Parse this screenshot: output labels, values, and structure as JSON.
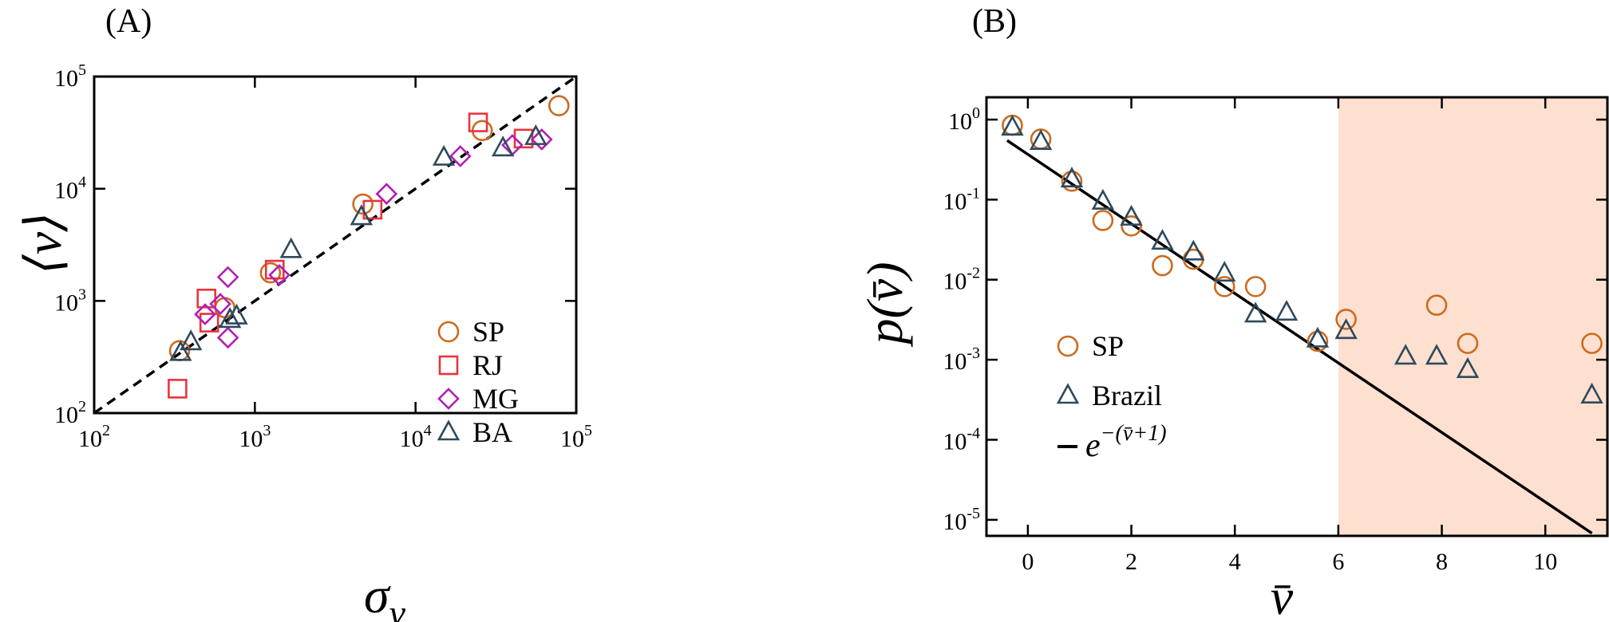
{
  "chart_data": [
    {
      "type": "scatter",
      "panel_label": "(A)",
      "xlabel": "σ",
      "xlabel_sub": "v",
      "ylabel": "⟨v⟩",
      "xscale": "log",
      "yscale": "log",
      "xlim": [
        100,
        100000
      ],
      "ylim": [
        100,
        100000
      ],
      "x_ticks": [
        {
          "value": 100,
          "base": "10",
          "exp": "2"
        },
        {
          "value": 1000,
          "base": "10",
          "exp": "3"
        },
        {
          "value": 10000,
          "base": "10",
          "exp": "4"
        },
        {
          "value": 100000,
          "base": "10",
          "exp": "5"
        }
      ],
      "y_ticks": [
        {
          "value": 100,
          "base": "10",
          "exp": "2"
        },
        {
          "value": 1000,
          "base": "10",
          "exp": "3"
        },
        {
          "value": 10000,
          "base": "10",
          "exp": "4"
        },
        {
          "value": 100000,
          "base": "10",
          "exp": "5"
        }
      ],
      "grid": false,
      "legend_position": "lower-right",
      "fit_line": {
        "style": "dashed",
        "color": "#000000",
        "x": [
          100,
          100000
        ],
        "y": [
          100,
          100000
        ]
      },
      "series": [
        {
          "name": "SP",
          "marker": "circle",
          "color": "#cc6a1e",
          "points": [
            [
              340,
              360
            ],
            [
              650,
              870
            ],
            [
              1250,
              1780
            ],
            [
              4700,
              7300
            ],
            [
              26000,
              33000
            ],
            [
              78000,
              55000
            ]
          ]
        },
        {
          "name": "RJ",
          "marker": "square",
          "color": "#e8343f",
          "points": [
            [
              330,
              165
            ],
            [
              500,
              1050
            ],
            [
              520,
              640
            ],
            [
              1330,
              1900
            ],
            [
              5400,
              6500
            ],
            [
              24500,
              39000
            ],
            [
              47000,
              28000
            ]
          ]
        },
        {
          "name": "MG",
          "marker": "diamond",
          "color": "#b020b4",
          "points": [
            [
              490,
              760
            ],
            [
              610,
              940
            ],
            [
              680,
              1630
            ],
            [
              680,
              470
            ],
            [
              1420,
              1700
            ],
            [
              6600,
              9000
            ],
            [
              19000,
              19500
            ],
            [
              40000,
              24500
            ],
            [
              61000,
              27500
            ]
          ]
        },
        {
          "name": "BA",
          "marker": "triangle",
          "color": "#2e4a5c",
          "points": [
            [
              345,
              345
            ],
            [
              400,
              430
            ],
            [
              700,
              680
            ],
            [
              770,
              730
            ],
            [
              1680,
              2850
            ],
            [
              4600,
              5600
            ],
            [
              15000,
              19000
            ],
            [
              35000,
              23000
            ],
            [
              56000,
              29000
            ]
          ]
        }
      ]
    },
    {
      "type": "scatter",
      "panel_label": "(B)",
      "xlabel": "v̄",
      "ylabel": "p(v̄)",
      "yscale": "log",
      "xlim": [
        -0.8,
        11.2
      ],
      "ylim": [
        6.3e-06,
        1.9
      ],
      "x_ticks": [
        0,
        2,
        4,
        6,
        8,
        10
      ],
      "y_ticks": [
        {
          "value": 1,
          "base": "10",
          "exp": "0"
        },
        {
          "value": 0.1,
          "base": "10",
          "exp": "-1"
        },
        {
          "value": 0.01,
          "base": "10",
          "exp": "-2"
        },
        {
          "value": 0.001,
          "base": "10",
          "exp": "-3"
        },
        {
          "value": 0.0001,
          "base": "10",
          "exp": "-4"
        },
        {
          "value": 1e-05,
          "base": "10",
          "exp": "-5"
        }
      ],
      "grid": false,
      "legend_position": "lower-left",
      "shaded_region": {
        "x": [
          6,
          11.2
        ],
        "color": "#fde0cf"
      },
      "fit_line": {
        "name": "e",
        "exponent": "−(v̄+1)",
        "style": "solid",
        "color": "#000000",
        "x": [
          -0.4,
          10.9
        ]
      },
      "series": [
        {
          "name": "SP",
          "marker": "circle",
          "color": "#cc6a1e",
          "points": [
            [
              -0.3,
              0.85
            ],
            [
              0.25,
              0.57
            ],
            [
              0.85,
              0.17
            ],
            [
              1.45,
              0.055
            ],
            [
              2.0,
              0.047
            ],
            [
              2.6,
              0.015
            ],
            [
              3.2,
              0.018
            ],
            [
              3.8,
              0.0082
            ],
            [
              4.4,
              0.0082
            ],
            [
              5.6,
              0.0017
            ],
            [
              6.15,
              0.0032
            ],
            [
              7.9,
              0.0048
            ],
            [
              8.5,
              0.0016
            ],
            [
              10.9,
              0.0016
            ]
          ]
        },
        {
          "name": "Brazil",
          "marker": "triangle",
          "color": "#2e4a5c",
          "points": [
            [
              -0.3,
              0.8
            ],
            [
              0.25,
              0.53
            ],
            [
              0.85,
              0.18
            ],
            [
              1.45,
              0.095
            ],
            [
              2.0,
              0.06
            ],
            [
              2.6,
              0.03
            ],
            [
              3.2,
              0.022
            ],
            [
              3.8,
              0.012
            ],
            [
              4.4,
              0.0037
            ],
            [
              5.0,
              0.0039
            ],
            [
              5.6,
              0.0018
            ],
            [
              6.15,
              0.0023
            ],
            [
              7.3,
              0.0011
            ],
            [
              7.9,
              0.0011
            ],
            [
              8.5,
              0.00075
            ],
            [
              10.9,
              0.00036
            ]
          ]
        }
      ]
    }
  ]
}
